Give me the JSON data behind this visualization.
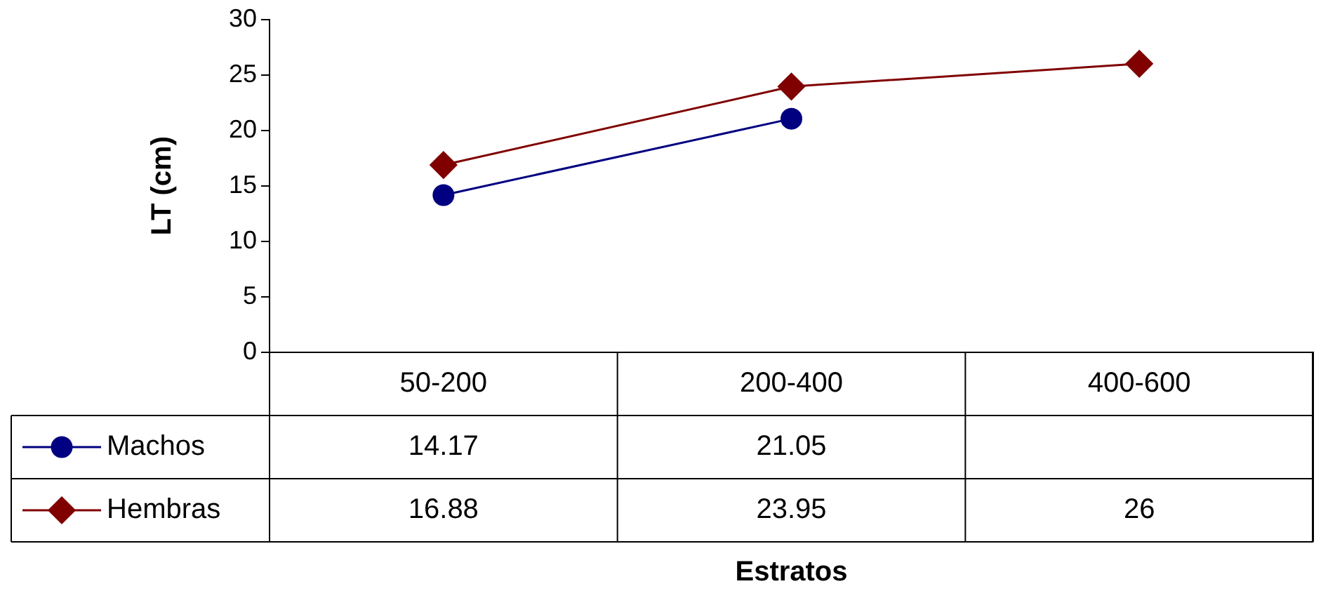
{
  "chart_data": {
    "type": "line",
    "ylabel": "LT (cm)",
    "annotations": [
      "Estratos"
    ],
    "categories": [
      "50-200",
      "200-400",
      "400-600"
    ],
    "series": [
      {
        "name": "Machos",
        "color": "#000080",
        "marker": "circle",
        "values": [
          14.17,
          21.05,
          null
        ]
      },
      {
        "name": "Hembras",
        "color": "#800000",
        "marker": "diamond",
        "values": [
          16.88,
          23.95,
          26
        ]
      }
    ],
    "ylim": [
      0,
      30
    ],
    "yticks": [
      0,
      5,
      10,
      15,
      20,
      25,
      30
    ],
    "grid": false,
    "legend": "bottom left",
    "data_labels": true
  }
}
